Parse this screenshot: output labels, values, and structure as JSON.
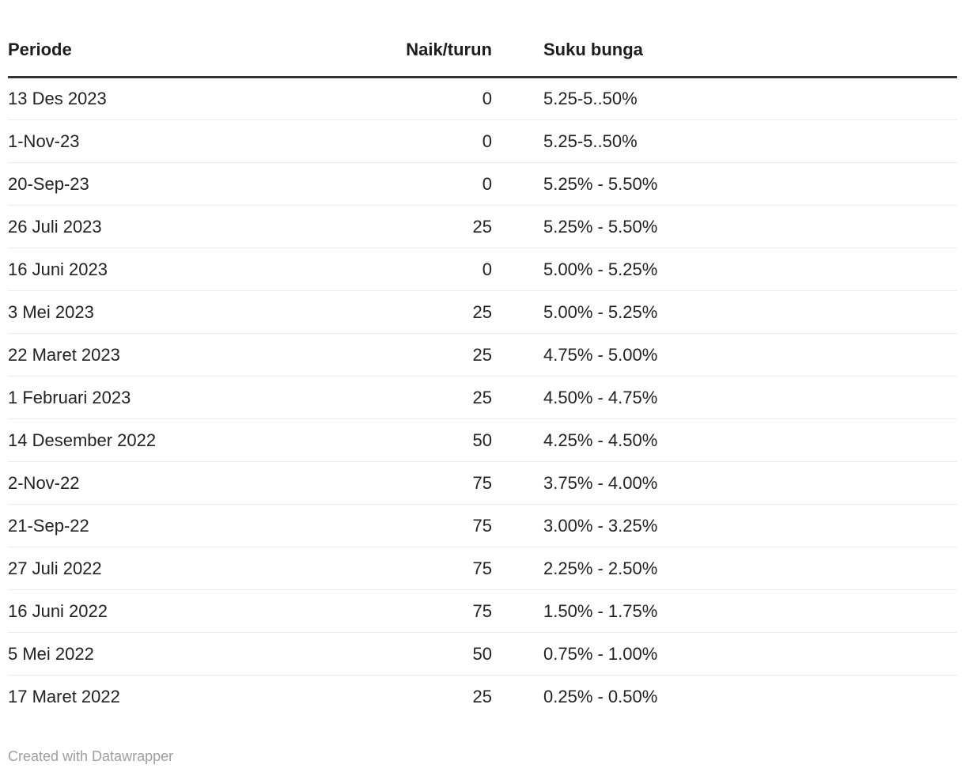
{
  "chart_data": {
    "type": "table",
    "columns": [
      {
        "key": "periode",
        "label": "Periode",
        "align": "left"
      },
      {
        "key": "naik_turun",
        "label": "Naik/turun",
        "align": "right"
      },
      {
        "key": "suku_bunga",
        "label": "Suku bunga",
        "align": "left"
      }
    ],
    "rows": [
      {
        "periode": "13 Des 2023",
        "naik_turun": "0",
        "suku_bunga": "5.25-5..50%"
      },
      {
        "periode": "1-Nov-23",
        "naik_turun": "0",
        "suku_bunga": "5.25-5..50%"
      },
      {
        "periode": "20-Sep-23",
        "naik_turun": "0",
        "suku_bunga": "5.25% - 5.50%"
      },
      {
        "periode": "26 Juli 2023",
        "naik_turun": "25",
        "suku_bunga": "5.25% - 5.50%"
      },
      {
        "periode": "16 Juni 2023",
        "naik_turun": "0",
        "suku_bunga": "5.00% - 5.25%"
      },
      {
        "periode": "3 Mei 2023",
        "naik_turun": "25",
        "suku_bunga": "5.00% - 5.25%"
      },
      {
        "periode": "22 Maret 2023",
        "naik_turun": "25",
        "suku_bunga": "4.75% - 5.00%"
      },
      {
        "periode": "1 Februari 2023",
        "naik_turun": "25",
        "suku_bunga": "4.50% - 4.75%"
      },
      {
        "periode": "14 Desember 2022",
        "naik_turun": "50",
        "suku_bunga": "4.25% - 4.50%"
      },
      {
        "periode": "2-Nov-22",
        "naik_turun": "75",
        "suku_bunga": "3.75% - 4.00%"
      },
      {
        "periode": "21-Sep-22",
        "naik_turun": "75",
        "suku_bunga": "3.00% - 3.25%"
      },
      {
        "periode": "27 Juli 2022",
        "naik_turun": "75",
        "suku_bunga": "2.25% - 2.50%"
      },
      {
        "periode": "16 Juni 2022",
        "naik_turun": "75",
        "suku_bunga": "1.50% - 1.75%"
      },
      {
        "periode": "5 Mei 2022",
        "naik_turun": "50",
        "suku_bunga": "0.75% - 1.00%"
      },
      {
        "periode": "17 Maret 2022",
        "naik_turun": "25",
        "suku_bunga": "0.25% - 0.50%"
      }
    ]
  },
  "footer": {
    "attribution": "Created with Datawrapper"
  },
  "colors": {
    "text": "#222222",
    "header_text": "#1d1d1d",
    "header_border": "#333333",
    "row_border": "#ebebeb",
    "footer_text": "#9e9e9e",
    "background": "#ffffff"
  }
}
